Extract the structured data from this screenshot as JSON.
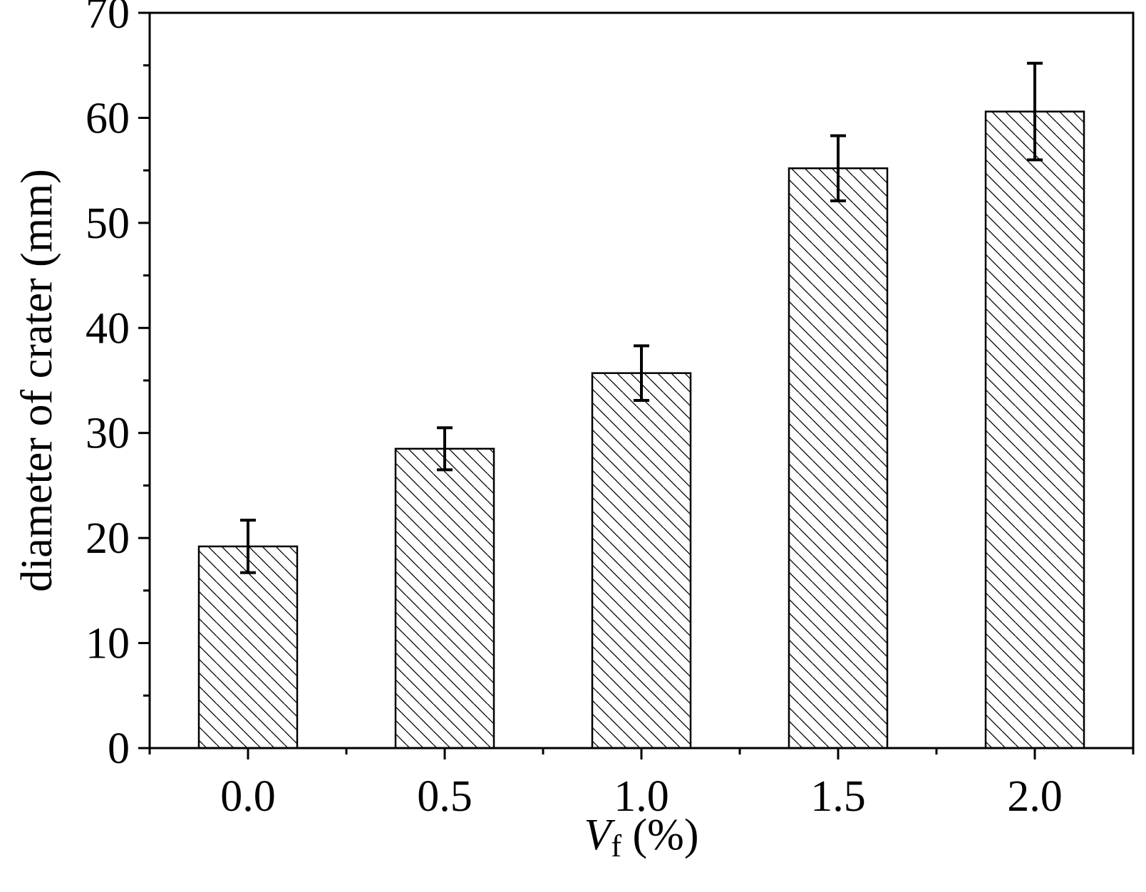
{
  "chart_data": {
    "type": "bar",
    "categories": [
      "0.0",
      "0.5",
      "1.0",
      "1.5",
      "2.0"
    ],
    "values": [
      19.2,
      28.5,
      35.7,
      55.2,
      60.6
    ],
    "errors": [
      2.5,
      2.0,
      2.6,
      3.1,
      4.6
    ],
    "ylabel": "diameter of crater (mm)",
    "xlabel": {
      "var": "V",
      "sub": "f",
      "unit": " (%)"
    },
    "ylim": [
      0,
      70
    ],
    "yticks": [
      "0",
      "10",
      "20",
      "30",
      "40",
      "50",
      "60",
      "70"
    ],
    "bar_fill": "hatched (diagonal lines)",
    "colors": {
      "line": "#000000",
      "background": "#ffffff"
    },
    "grid": false,
    "legend": "none"
  }
}
